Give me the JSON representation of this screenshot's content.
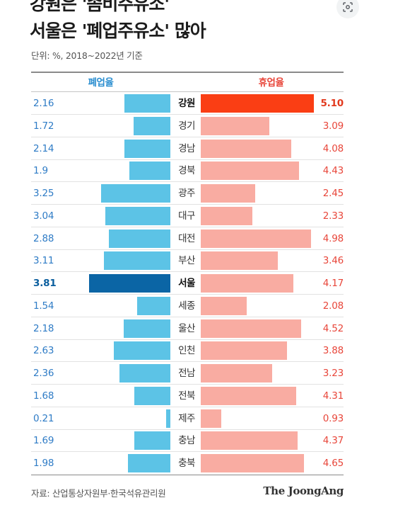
{
  "title": {
    "line1": "강원은 '좀비주유소'",
    "line2": "서울은 '폐업주유소' 많아"
  },
  "unit_note": "단위: %, 2018~2022년 기준",
  "source": "자료: 산업통상자원부·한국석유관리원",
  "brand": "The JoongAng",
  "lens_icon": "google-lens-icon",
  "colors": {
    "left_bar": "#5cc3e6",
    "left_highlight": "#0b65a5",
    "right_bar": "#f9aca2",
    "right_highlight": "#fa3e14"
  },
  "chart_data": {
    "type": "bar",
    "orientation": "horizontal-butterfly",
    "categories": [
      "강원",
      "경기",
      "경남",
      "경북",
      "광주",
      "대구",
      "대전",
      "부산",
      "서울",
      "세종",
      "울산",
      "인천",
      "전남",
      "전북",
      "제주",
      "충남",
      "충북"
    ],
    "series": [
      {
        "name": "폐업율",
        "side": "left",
        "labels": [
          "2.16",
          "1.72",
          "2.14",
          "1.9",
          "3.25",
          "3.04",
          "2.88",
          "3.11",
          "3.81",
          "1.54",
          "2.18",
          "2.63",
          "2.36",
          "1.68",
          "0.21",
          "1.69",
          "1.98"
        ],
        "values": [
          2.16,
          1.72,
          2.14,
          1.9,
          3.25,
          3.04,
          2.88,
          3.11,
          3.81,
          1.54,
          2.18,
          2.63,
          2.36,
          1.68,
          0.21,
          1.69,
          1.98
        ],
        "highlight": [
          "서울"
        ]
      },
      {
        "name": "휴업율",
        "side": "right",
        "labels": [
          "5.10",
          "3.09",
          "4.08",
          "4.43",
          "2.45",
          "2.33",
          "4.98",
          "3.46",
          "4.17",
          "2.08",
          "4.52",
          "3.88",
          "3.23",
          "4.31",
          "0.93",
          "4.37",
          "4.65"
        ],
        "values": [
          5.1,
          3.09,
          4.08,
          4.43,
          2.45,
          2.33,
          4.98,
          3.46,
          4.17,
          2.08,
          4.52,
          3.88,
          3.23,
          4.31,
          0.93,
          4.37,
          4.65
        ],
        "highlight": [
          "강원"
        ]
      }
    ],
    "bold_categories": [
      "강원",
      "서울"
    ],
    "grid": false
  }
}
